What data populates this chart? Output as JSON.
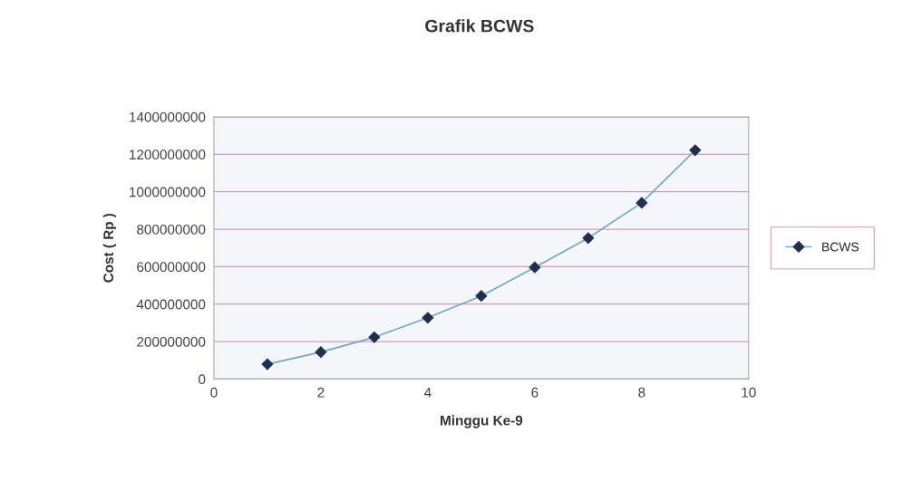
{
  "chart_data": {
    "type": "line",
    "title": "Grafik BCWS",
    "xlabel": "Minggu Ke-9",
    "ylabel": "Cost ( Rp )",
    "x": [
      1,
      2,
      3,
      4,
      5,
      6,
      7,
      8,
      9
    ],
    "series": [
      {
        "name": "BCWS",
        "color": "#6fa8c8",
        "values": [
          79000000,
          144000000,
          223000000,
          327000000,
          444000000,
          596000000,
          753000000,
          941000000,
          1222000000
        ]
      }
    ],
    "xlim": [
      0,
      10
    ],
    "xticks": [
      0,
      2,
      4,
      6,
      8,
      10
    ],
    "ylim": [
      0,
      1400000000
    ],
    "yticks": [
      0,
      200000000,
      400000000,
      600000000,
      800000000,
      1000000000,
      1200000000,
      1400000000
    ],
    "grid": "y",
    "legend": "right",
    "marker": "diamond",
    "line_style": "solid"
  }
}
